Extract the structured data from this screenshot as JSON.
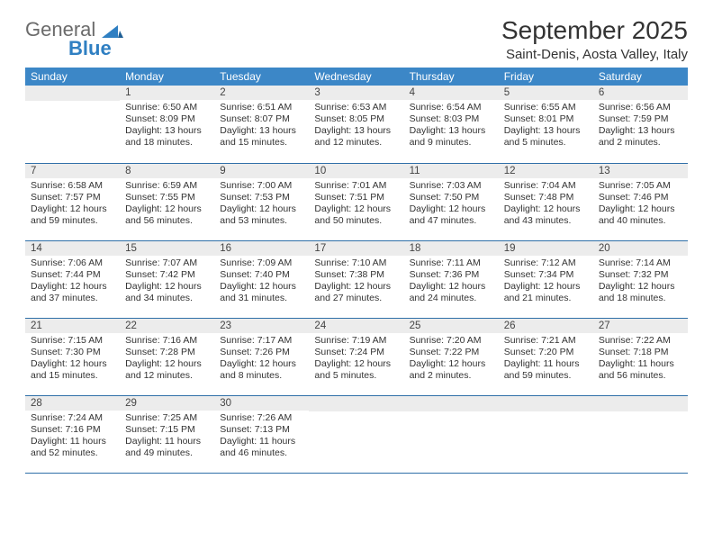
{
  "brand": {
    "general": "General",
    "blue": "Blue"
  },
  "title": "September 2025",
  "subtitle": "Saint-Denis, Aosta Valley, Italy",
  "colors": {
    "header_bg": "#3c87c7",
    "header_text": "#ffffff",
    "daynum_bg": "#ececec",
    "row_border": "#2f6fa8",
    "logo_gray": "#6b6b6b",
    "logo_blue": "#2f7fc2",
    "text": "#333333",
    "page_bg": "#ffffff"
  },
  "weekdays": [
    "Sunday",
    "Monday",
    "Tuesday",
    "Wednesday",
    "Thursday",
    "Friday",
    "Saturday"
  ],
  "weeks": [
    [
      {
        "n": "",
        "sr": "",
        "ss": "",
        "dl": ""
      },
      {
        "n": "1",
        "sr": "Sunrise: 6:50 AM",
        "ss": "Sunset: 8:09 PM",
        "dl": "Daylight: 13 hours and 18 minutes."
      },
      {
        "n": "2",
        "sr": "Sunrise: 6:51 AM",
        "ss": "Sunset: 8:07 PM",
        "dl": "Daylight: 13 hours and 15 minutes."
      },
      {
        "n": "3",
        "sr": "Sunrise: 6:53 AM",
        "ss": "Sunset: 8:05 PM",
        "dl": "Daylight: 13 hours and 12 minutes."
      },
      {
        "n": "4",
        "sr": "Sunrise: 6:54 AM",
        "ss": "Sunset: 8:03 PM",
        "dl": "Daylight: 13 hours and 9 minutes."
      },
      {
        "n": "5",
        "sr": "Sunrise: 6:55 AM",
        "ss": "Sunset: 8:01 PM",
        "dl": "Daylight: 13 hours and 5 minutes."
      },
      {
        "n": "6",
        "sr": "Sunrise: 6:56 AM",
        "ss": "Sunset: 7:59 PM",
        "dl": "Daylight: 13 hours and 2 minutes."
      }
    ],
    [
      {
        "n": "7",
        "sr": "Sunrise: 6:58 AM",
        "ss": "Sunset: 7:57 PM",
        "dl": "Daylight: 12 hours and 59 minutes."
      },
      {
        "n": "8",
        "sr": "Sunrise: 6:59 AM",
        "ss": "Sunset: 7:55 PM",
        "dl": "Daylight: 12 hours and 56 minutes."
      },
      {
        "n": "9",
        "sr": "Sunrise: 7:00 AM",
        "ss": "Sunset: 7:53 PM",
        "dl": "Daylight: 12 hours and 53 minutes."
      },
      {
        "n": "10",
        "sr": "Sunrise: 7:01 AM",
        "ss": "Sunset: 7:51 PM",
        "dl": "Daylight: 12 hours and 50 minutes."
      },
      {
        "n": "11",
        "sr": "Sunrise: 7:03 AM",
        "ss": "Sunset: 7:50 PM",
        "dl": "Daylight: 12 hours and 47 minutes."
      },
      {
        "n": "12",
        "sr": "Sunrise: 7:04 AM",
        "ss": "Sunset: 7:48 PM",
        "dl": "Daylight: 12 hours and 43 minutes."
      },
      {
        "n": "13",
        "sr": "Sunrise: 7:05 AM",
        "ss": "Sunset: 7:46 PM",
        "dl": "Daylight: 12 hours and 40 minutes."
      }
    ],
    [
      {
        "n": "14",
        "sr": "Sunrise: 7:06 AM",
        "ss": "Sunset: 7:44 PM",
        "dl": "Daylight: 12 hours and 37 minutes."
      },
      {
        "n": "15",
        "sr": "Sunrise: 7:07 AM",
        "ss": "Sunset: 7:42 PM",
        "dl": "Daylight: 12 hours and 34 minutes."
      },
      {
        "n": "16",
        "sr": "Sunrise: 7:09 AM",
        "ss": "Sunset: 7:40 PM",
        "dl": "Daylight: 12 hours and 31 minutes."
      },
      {
        "n": "17",
        "sr": "Sunrise: 7:10 AM",
        "ss": "Sunset: 7:38 PM",
        "dl": "Daylight: 12 hours and 27 minutes."
      },
      {
        "n": "18",
        "sr": "Sunrise: 7:11 AM",
        "ss": "Sunset: 7:36 PM",
        "dl": "Daylight: 12 hours and 24 minutes."
      },
      {
        "n": "19",
        "sr": "Sunrise: 7:12 AM",
        "ss": "Sunset: 7:34 PM",
        "dl": "Daylight: 12 hours and 21 minutes."
      },
      {
        "n": "20",
        "sr": "Sunrise: 7:14 AM",
        "ss": "Sunset: 7:32 PM",
        "dl": "Daylight: 12 hours and 18 minutes."
      }
    ],
    [
      {
        "n": "21",
        "sr": "Sunrise: 7:15 AM",
        "ss": "Sunset: 7:30 PM",
        "dl": "Daylight: 12 hours and 15 minutes."
      },
      {
        "n": "22",
        "sr": "Sunrise: 7:16 AM",
        "ss": "Sunset: 7:28 PM",
        "dl": "Daylight: 12 hours and 12 minutes."
      },
      {
        "n": "23",
        "sr": "Sunrise: 7:17 AM",
        "ss": "Sunset: 7:26 PM",
        "dl": "Daylight: 12 hours and 8 minutes."
      },
      {
        "n": "24",
        "sr": "Sunrise: 7:19 AM",
        "ss": "Sunset: 7:24 PM",
        "dl": "Daylight: 12 hours and 5 minutes."
      },
      {
        "n": "25",
        "sr": "Sunrise: 7:20 AM",
        "ss": "Sunset: 7:22 PM",
        "dl": "Daylight: 12 hours and 2 minutes."
      },
      {
        "n": "26",
        "sr": "Sunrise: 7:21 AM",
        "ss": "Sunset: 7:20 PM",
        "dl": "Daylight: 11 hours and 59 minutes."
      },
      {
        "n": "27",
        "sr": "Sunrise: 7:22 AM",
        "ss": "Sunset: 7:18 PM",
        "dl": "Daylight: 11 hours and 56 minutes."
      }
    ],
    [
      {
        "n": "28",
        "sr": "Sunrise: 7:24 AM",
        "ss": "Sunset: 7:16 PM",
        "dl": "Daylight: 11 hours and 52 minutes."
      },
      {
        "n": "29",
        "sr": "Sunrise: 7:25 AM",
        "ss": "Sunset: 7:15 PM",
        "dl": "Daylight: 11 hours and 49 minutes."
      },
      {
        "n": "30",
        "sr": "Sunrise: 7:26 AM",
        "ss": "Sunset: 7:13 PM",
        "dl": "Daylight: 11 hours and 46 minutes."
      },
      {
        "n": "",
        "sr": "",
        "ss": "",
        "dl": ""
      },
      {
        "n": "",
        "sr": "",
        "ss": "",
        "dl": ""
      },
      {
        "n": "",
        "sr": "",
        "ss": "",
        "dl": ""
      },
      {
        "n": "",
        "sr": "",
        "ss": "",
        "dl": ""
      }
    ]
  ]
}
